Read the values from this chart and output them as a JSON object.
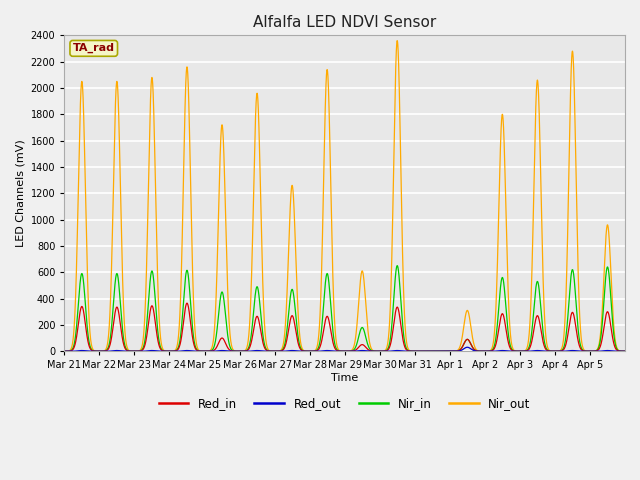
{
  "title": "Alfalfa LED NDVI Sensor",
  "xlabel": "Time",
  "ylabel": "LED Channels (mV)",
  "ylim": [
    0,
    2400
  ],
  "fig_bg_color": "#f0f0f0",
  "plot_bg_color": "#e8e8e8",
  "legend_label": "TA_rad",
  "legend_bg": "#f5f5c8",
  "legend_border": "#aaa800",
  "series_colors": {
    "Red_in": "#dd0000",
    "Red_out": "#0000cc",
    "Nir_in": "#00cc00",
    "Nir_out": "#ffaa00"
  },
  "x_tick_labels": [
    "Mar 21",
    "Mar 22",
    "Mar 23",
    "Mar 24",
    "Mar 25",
    "Mar 26",
    "Mar 27",
    "Mar 28",
    "Mar 29",
    "Mar 30",
    "Mar 31",
    "Apr 1",
    "Apr 2",
    "Apr 3",
    "Apr 4",
    "Apr 5"
  ],
  "num_days": 16,
  "nir_out_peaks": [
    2050,
    2050,
    2080,
    2160,
    1720,
    1960,
    1260,
    2140,
    610,
    2360,
    0,
    310,
    1800,
    2060,
    2280,
    960
  ],
  "nir_in_peaks": [
    590,
    590,
    610,
    615,
    450,
    490,
    470,
    590,
    180,
    650,
    0,
    90,
    560,
    530,
    620,
    640
  ],
  "red_in_peaks": [
    340,
    335,
    345,
    365,
    100,
    265,
    270,
    265,
    50,
    335,
    0,
    90,
    285,
    270,
    295,
    300
  ],
  "red_out_peaks": [
    5,
    5,
    5,
    5,
    5,
    5,
    5,
    5,
    5,
    5,
    0,
    30,
    5,
    5,
    5,
    5
  ]
}
